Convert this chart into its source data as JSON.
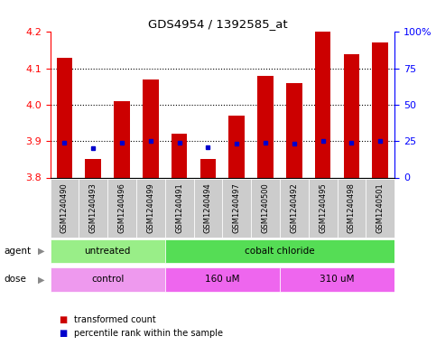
{
  "title": "GDS4954 / 1392585_at",
  "samples": [
    "GSM1240490",
    "GSM1240493",
    "GSM1240496",
    "GSM1240499",
    "GSM1240491",
    "GSM1240494",
    "GSM1240497",
    "GSM1240500",
    "GSM1240492",
    "GSM1240495",
    "GSM1240498",
    "GSM1240501"
  ],
  "transformed_count": [
    4.13,
    3.85,
    4.01,
    4.07,
    3.92,
    3.85,
    3.97,
    4.08,
    4.06,
    4.21,
    4.14,
    4.17
  ],
  "percentile_rank": [
    24,
    20,
    24,
    25,
    24,
    21,
    23,
    24,
    23,
    25,
    24,
    25
  ],
  "ylim_left": [
    3.8,
    4.2
  ],
  "ylim_right": [
    0,
    100
  ],
  "yticks_left": [
    3.8,
    3.9,
    4.0,
    4.1,
    4.2
  ],
  "yticks_right": [
    0,
    25,
    50,
    75,
    100
  ],
  "ytick_labels_right": [
    "0",
    "25",
    "50",
    "75",
    "100%"
  ],
  "bar_color": "#CC0000",
  "percentile_color": "#0000CC",
  "bar_bottom": 3.8,
  "agent_groups": [
    {
      "label": "untreated",
      "start": 0,
      "end": 4,
      "color": "#99EE88"
    },
    {
      "label": "cobalt chloride",
      "start": 4,
      "end": 12,
      "color": "#55DD55"
    }
  ],
  "dose_groups": [
    {
      "label": "control",
      "start": 0,
      "end": 4,
      "color": "#EE99EE"
    },
    {
      "label": "160 uM",
      "start": 4,
      "end": 8,
      "color": "#EE66EE"
    },
    {
      "label": "310 uM",
      "start": 8,
      "end": 12,
      "color": "#EE66EE"
    }
  ],
  "grid_yticks": [
    3.9,
    4.0,
    4.1
  ],
  "x_label_bg_color": "#CCCCCC",
  "spine_left_color": "#CC0000",
  "spine_right_color": "#0000CC"
}
